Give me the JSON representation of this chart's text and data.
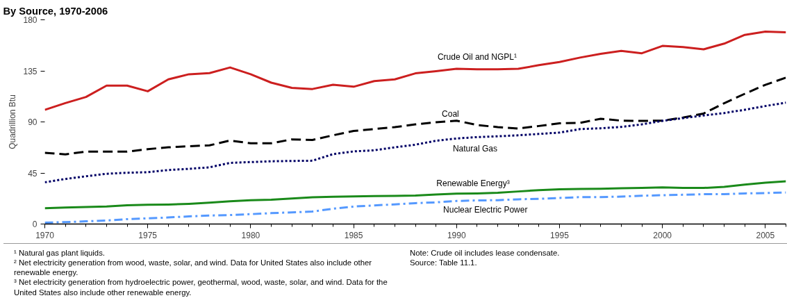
{
  "chart_data": {
    "type": "line",
    "title": "By Source, 1970-2006",
    "ylabel": "Quadrillion Btu",
    "x": [
      1970,
      1971,
      1972,
      1973,
      1974,
      1975,
      1976,
      1977,
      1978,
      1979,
      1980,
      1981,
      1982,
      1983,
      1984,
      1985,
      1986,
      1987,
      1988,
      1989,
      1990,
      1991,
      1992,
      1993,
      1994,
      1995,
      1996,
      1997,
      1998,
      1999,
      2000,
      2001,
      2002,
      2003,
      2004,
      2005,
      2006
    ],
    "series": [
      {
        "name": "Crude Oil and NGPL¹",
        "color": "#cc1f1f",
        "line_style": "solid",
        "values": [
          100.6,
          106.6,
          112,
          122,
          122,
          117,
          127.5,
          132,
          133,
          138,
          132,
          124.6,
          120,
          119,
          122.7,
          121,
          126,
          127.5,
          132.8,
          134.7,
          136.8,
          136.4,
          136.4,
          136.8,
          140,
          142.8,
          146.7,
          150,
          152.6,
          150.5,
          157,
          156,
          154,
          159,
          166.7,
          169.6,
          169
        ]
      },
      {
        "name": "Coal",
        "color": "#000000",
        "line_style": "dashed",
        "values": [
          62.8,
          61.4,
          63.8,
          63.8,
          63.8,
          66,
          67.6,
          68.6,
          69.3,
          73.6,
          71.2,
          71.2,
          74.6,
          74.1,
          78.2,
          82,
          83.7,
          85.4,
          87.8,
          89.7,
          91.1,
          87.3,
          85.4,
          84.2,
          86.4,
          88.8,
          89.2,
          92.8,
          91.1,
          90.9,
          91.1,
          93.8,
          97.4,
          106.5,
          114.8,
          122.7,
          129
        ]
      },
      {
        "name": "Natural Gas",
        "color": "#000066",
        "line_style": "dotted",
        "values": [
          36.8,
          39.7,
          42.1,
          44.3,
          45.2,
          45.7,
          47.6,
          48.6,
          50,
          53.9,
          54.6,
          55.3,
          55.6,
          55.8,
          61.6,
          64,
          65,
          67.6,
          69.9,
          73.4,
          75.4,
          76.6,
          77.3,
          78.2,
          79.4,
          80.6,
          83.7,
          84.4,
          85.6,
          87.8,
          90.9,
          93.3,
          95.7,
          97.8,
          100.7,
          104,
          107
        ]
      },
      {
        "name": "Renewable Energy³",
        "color": "#1a8a1a",
        "line_style": "solid",
        "values": [
          14,
          14.5,
          15,
          15.5,
          16.6,
          17,
          17.2,
          17.8,
          18.8,
          20,
          21,
          21.5,
          22.5,
          23.6,
          24,
          24.3,
          24.6,
          24.8,
          25.1,
          26,
          26.8,
          27,
          27.5,
          28.7,
          29.9,
          30.6,
          30.9,
          31.1,
          31.6,
          31.8,
          32.3,
          31.8,
          31.8,
          32.8,
          34.7,
          36.4,
          37.6
        ]
      },
      {
        "name": "Nuclear Electric Power",
        "color": "#5599ff",
        "line_style": "dashdot",
        "values": [
          1.2,
          1.7,
          2.4,
          3.1,
          4.3,
          5,
          5.8,
          6.7,
          7.5,
          7.9,
          8.7,
          9.6,
          10.3,
          11,
          13.5,
          15.4,
          16.4,
          17.3,
          18.4,
          19.1,
          20.3,
          20.8,
          21,
          21.8,
          22.2,
          23,
          23.7,
          23.7,
          24.2,
          24.9,
          25.4,
          25.8,
          26.3,
          26.3,
          27,
          27.3,
          27.8
        ]
      }
    ],
    "xlim": [
      1970,
      2006
    ],
    "xticks": [
      1970,
      1975,
      1980,
      1985,
      1990,
      1995,
      2000,
      2005
    ],
    "ylim": [
      0,
      180
    ],
    "yticks": [
      0,
      45,
      90,
      135,
      180
    ],
    "grid": false,
    "marker": "none",
    "annotations": [
      "¹ Natural gas plant liquids.",
      "² Net electricity generation from wood, waste, solar, and  wind.  Data for United States also include other renewable energy.",
      "³ Net electricity generation from hydroelectric power, geothermal, wood, waste, solar, and wind.  Data for the United States also include other renewable energy.",
      "Note:  Crude oil includes lease condensate.",
      "Source:  Table 11.1."
    ]
  }
}
